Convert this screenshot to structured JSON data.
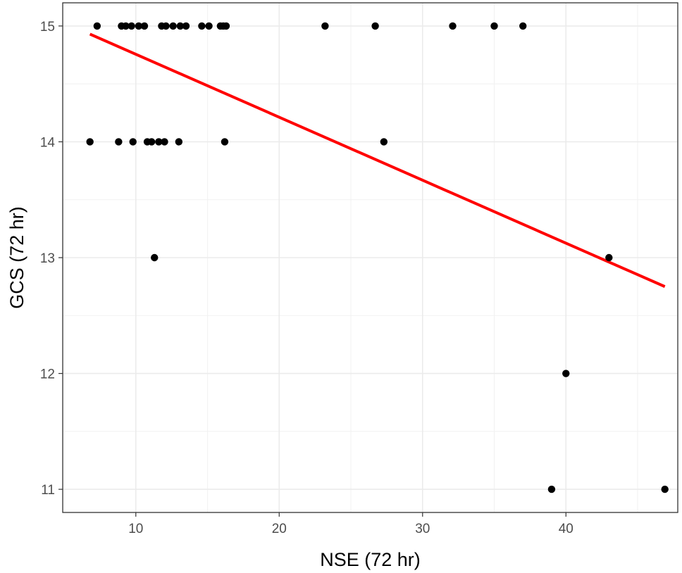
{
  "chart_data": {
    "type": "scatter",
    "xlabel": "NSE (72 hr)",
    "ylabel": "GCS (72 hr)",
    "xlim": [
      4.9,
      47.8
    ],
    "ylim": [
      10.8,
      15.2
    ],
    "x_ticks": [
      10,
      20,
      30,
      40
    ],
    "y_ticks": [
      11,
      12,
      13,
      14,
      15
    ],
    "grid": true,
    "legend": "none",
    "points": [
      {
        "x": 7.3,
        "y": 15
      },
      {
        "x": 9.0,
        "y": 15
      },
      {
        "x": 9.3,
        "y": 15
      },
      {
        "x": 9.7,
        "y": 15
      },
      {
        "x": 10.2,
        "y": 15
      },
      {
        "x": 10.6,
        "y": 15
      },
      {
        "x": 11.8,
        "y": 15
      },
      {
        "x": 12.1,
        "y": 15
      },
      {
        "x": 12.6,
        "y": 15
      },
      {
        "x": 13.1,
        "y": 15
      },
      {
        "x": 13.5,
        "y": 15
      },
      {
        "x": 14.6,
        "y": 15
      },
      {
        "x": 15.1,
        "y": 15
      },
      {
        "x": 15.9,
        "y": 15
      },
      {
        "x": 16.1,
        "y": 15
      },
      {
        "x": 16.3,
        "y": 15
      },
      {
        "x": 23.2,
        "y": 15
      },
      {
        "x": 26.7,
        "y": 15
      },
      {
        "x": 32.1,
        "y": 15
      },
      {
        "x": 35.0,
        "y": 15
      },
      {
        "x": 37.0,
        "y": 15
      },
      {
        "x": 6.8,
        "y": 14
      },
      {
        "x": 8.8,
        "y": 14
      },
      {
        "x": 9.8,
        "y": 14
      },
      {
        "x": 10.8,
        "y": 14
      },
      {
        "x": 11.1,
        "y": 14
      },
      {
        "x": 11.6,
        "y": 14
      },
      {
        "x": 12.0,
        "y": 14
      },
      {
        "x": 13.0,
        "y": 14
      },
      {
        "x": 16.2,
        "y": 14
      },
      {
        "x": 27.3,
        "y": 14
      },
      {
        "x": 11.3,
        "y": 13
      },
      {
        "x": 43.0,
        "y": 13
      },
      {
        "x": 40.0,
        "y": 12
      },
      {
        "x": 39.0,
        "y": 11
      },
      {
        "x": 46.9,
        "y": 11
      }
    ],
    "fit_line": {
      "color": "#ff0000",
      "points": [
        {
          "x": 6.8,
          "y": 14.93
        },
        {
          "x": 46.9,
          "y": 12.75
        }
      ]
    },
    "point_color": "#000000"
  }
}
